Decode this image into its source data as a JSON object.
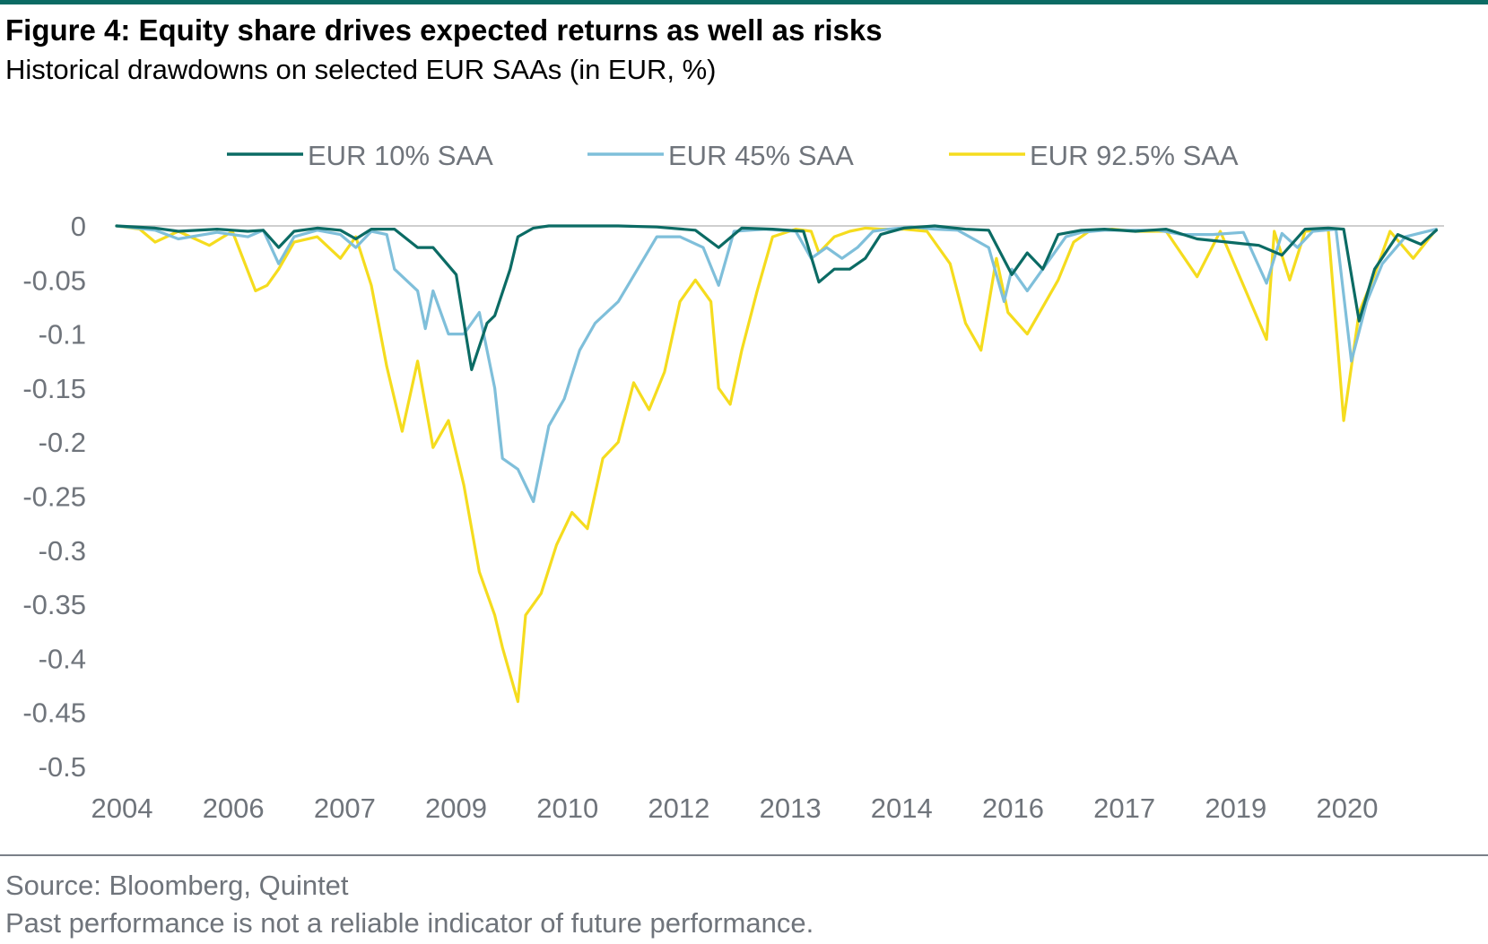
{
  "header": {
    "title": "Figure 4: Equity share drives expected returns as well as risks",
    "subtitle": "Historical drawdowns on selected EUR SAAs (in EUR, %)"
  },
  "footer": {
    "source": "Source: Bloomberg, Quintet",
    "disclaimer": "Past performance is not a reliable indicator of future performance."
  },
  "chart_data": {
    "type": "line",
    "title": "",
    "xlabel": "",
    "ylabel": "",
    "ylim": [
      -0.5,
      0
    ],
    "yticks": [
      0,
      -0.05,
      -0.1,
      -0.15,
      -0.2,
      -0.25,
      -0.3,
      -0.35,
      -0.4,
      -0.45,
      -0.5
    ],
    "ytick_labels": [
      "0",
      "-0.05",
      "-0.1",
      "-0.15",
      "-0.2",
      "-0.25",
      "-0.3",
      "-0.35",
      "-0.4",
      "-0.45",
      "-0.5"
    ],
    "xlim": [
      2004.0,
      2021.2
    ],
    "xtick_labels": [
      "2004",
      "2006",
      "2007",
      "2009",
      "2010",
      "2012",
      "2013",
      "2014",
      "2016",
      "2017",
      "2019",
      "2020"
    ],
    "grid": false,
    "legend_position": "top",
    "series": [
      {
        "name": "EUR 10% SAA",
        "color": "#0b6b64",
        "x": [
          2004.0,
          2004.5,
          2004.8,
          2005.3,
          2005.7,
          2005.9,
          2006.1,
          2006.3,
          2006.6,
          2006.9,
          2007.1,
          2007.3,
          2007.6,
          2007.9,
          2008.1,
          2008.4,
          2008.6,
          2008.8,
          2008.9,
          2009.1,
          2009.2,
          2009.4,
          2009.6,
          2009.8,
          2010.0,
          2010.5,
          2011.0,
          2011.5,
          2011.8,
          2012.1,
          2012.5,
          2012.9,
          2013.1,
          2013.3,
          2013.5,
          2013.7,
          2013.9,
          2014.2,
          2014.6,
          2015.0,
          2015.3,
          2015.6,
          2015.8,
          2016.0,
          2016.2,
          2016.5,
          2016.8,
          2017.2,
          2017.6,
          2018.0,
          2018.4,
          2018.8,
          2019.1,
          2019.4,
          2019.7,
          2019.9,
          2020.1,
          2020.3,
          2020.6,
          2020.9,
          2021.1
        ],
        "values": [
          0,
          -0.002,
          -0.005,
          -0.003,
          -0.005,
          -0.004,
          -0.02,
          -0.005,
          -0.002,
          -0.004,
          -0.012,
          -0.003,
          -0.003,
          -0.02,
          -0.02,
          -0.045,
          -0.133,
          -0.09,
          -0.083,
          -0.04,
          -0.01,
          -0.002,
          0,
          0,
          0,
          0,
          -0.001,
          -0.004,
          -0.02,
          -0.002,
          -0.003,
          -0.005,
          -0.052,
          -0.04,
          -0.04,
          -0.03,
          -0.008,
          -0.002,
          0,
          -0.003,
          -0.004,
          -0.045,
          -0.025,
          -0.04,
          -0.008,
          -0.004,
          -0.003,
          -0.005,
          -0.003,
          -0.012,
          -0.015,
          -0.018,
          -0.027,
          -0.003,
          -0.002,
          -0.003,
          -0.088,
          -0.04,
          -0.008,
          -0.017,
          -0.004
        ]
      },
      {
        "name": "EUR 45% SAA",
        "color": "#7fbfda",
        "x": [
          2004.0,
          2004.5,
          2004.8,
          2005.3,
          2005.7,
          2005.9,
          2006.1,
          2006.3,
          2006.6,
          2006.9,
          2007.1,
          2007.3,
          2007.5,
          2007.6,
          2007.9,
          2008.0,
          2008.1,
          2008.3,
          2008.5,
          2008.7,
          2008.9,
          2009.0,
          2009.2,
          2009.4,
          2009.6,
          2009.8,
          2010.0,
          2010.2,
          2010.5,
          2011.0,
          2011.3,
          2011.6,
          2011.8,
          2012.0,
          2012.4,
          2012.8,
          2013.0,
          2013.2,
          2013.4,
          2013.6,
          2013.8,
          2014.0,
          2014.3,
          2014.6,
          2014.9,
          2015.3,
          2015.5,
          2015.6,
          2015.8,
          2016.0,
          2016.3,
          2016.5,
          2016.8,
          2017.2,
          2017.5,
          2017.8,
          2018.2,
          2018.6,
          2018.9,
          2019.1,
          2019.3,
          2019.5,
          2019.8,
          2020.0,
          2020.2,
          2020.4,
          2020.7,
          2021.1
        ],
        "values": [
          0,
          -0.004,
          -0.012,
          -0.006,
          -0.01,
          -0.004,
          -0.035,
          -0.01,
          -0.004,
          -0.008,
          -0.02,
          -0.005,
          -0.008,
          -0.04,
          -0.06,
          -0.095,
          -0.06,
          -0.1,
          -0.1,
          -0.08,
          -0.15,
          -0.215,
          -0.225,
          -0.255,
          -0.185,
          -0.16,
          -0.115,
          -0.09,
          -0.07,
          -0.01,
          -0.01,
          -0.02,
          -0.055,
          -0.005,
          -0.003,
          -0.005,
          -0.03,
          -0.02,
          -0.03,
          -0.02,
          -0.005,
          -0.003,
          -0.001,
          -0.003,
          -0.004,
          -0.02,
          -0.07,
          -0.04,
          -0.06,
          -0.04,
          -0.01,
          -0.006,
          -0.004,
          -0.004,
          -0.004,
          -0.008,
          -0.008,
          -0.006,
          -0.053,
          -0.007,
          -0.02,
          -0.005,
          -0.003,
          -0.125,
          -0.07,
          -0.035,
          -0.01,
          -0.003
        ]
      },
      {
        "name": "EUR 92.5% SAA",
        "color": "#f5dc1e",
        "x": [
          2004.0,
          2004.3,
          2004.5,
          2004.8,
          2005.2,
          2005.5,
          2005.8,
          2005.95,
          2006.1,
          2006.3,
          2006.6,
          2006.9,
          2007.1,
          2007.3,
          2007.5,
          2007.7,
          2007.9,
          2008.1,
          2008.3,
          2008.5,
          2008.7,
          2008.9,
          2009.0,
          2009.2,
          2009.3,
          2009.5,
          2009.7,
          2009.9,
          2010.1,
          2010.3,
          2010.5,
          2010.7,
          2010.9,
          2011.1,
          2011.3,
          2011.5,
          2011.7,
          2011.8,
          2011.95,
          2012.1,
          2012.3,
          2012.5,
          2012.8,
          2013.0,
          2013.1,
          2013.3,
          2013.5,
          2013.7,
          2013.9,
          2014.2,
          2014.5,
          2014.8,
          2015.0,
          2015.2,
          2015.4,
          2015.55,
          2015.8,
          2016.0,
          2016.2,
          2016.4,
          2016.6,
          2016.9,
          2017.2,
          2017.6,
          2018.0,
          2018.3,
          2018.6,
          2018.9,
          2019.0,
          2019.2,
          2019.4,
          2019.7,
          2019.9,
          2020.1,
          2020.3,
          2020.5,
          2020.8,
          2021.1
        ],
        "values": [
          0,
          -0.003,
          -0.015,
          -0.005,
          -0.018,
          -0.005,
          -0.06,
          -0.055,
          -0.04,
          -0.015,
          -0.01,
          -0.03,
          -0.01,
          -0.055,
          -0.13,
          -0.19,
          -0.125,
          -0.205,
          -0.18,
          -0.24,
          -0.32,
          -0.36,
          -0.39,
          -0.44,
          -0.36,
          -0.34,
          -0.295,
          -0.265,
          -0.28,
          -0.215,
          -0.2,
          -0.145,
          -0.17,
          -0.135,
          -0.07,
          -0.05,
          -0.07,
          -0.15,
          -0.165,
          -0.115,
          -0.06,
          -0.01,
          -0.003,
          -0.005,
          -0.025,
          -0.01,
          -0.005,
          -0.002,
          -0.003,
          -0.003,
          -0.005,
          -0.035,
          -0.09,
          -0.115,
          -0.03,
          -0.08,
          -0.1,
          -0.075,
          -0.05,
          -0.015,
          -0.005,
          -0.003,
          -0.005,
          -0.005,
          -0.047,
          -0.005,
          -0.055,
          -0.105,
          -0.005,
          -0.05,
          -0.005,
          -0.003,
          -0.18,
          -0.08,
          -0.045,
          -0.005,
          -0.03,
          -0.003
        ]
      }
    ]
  }
}
